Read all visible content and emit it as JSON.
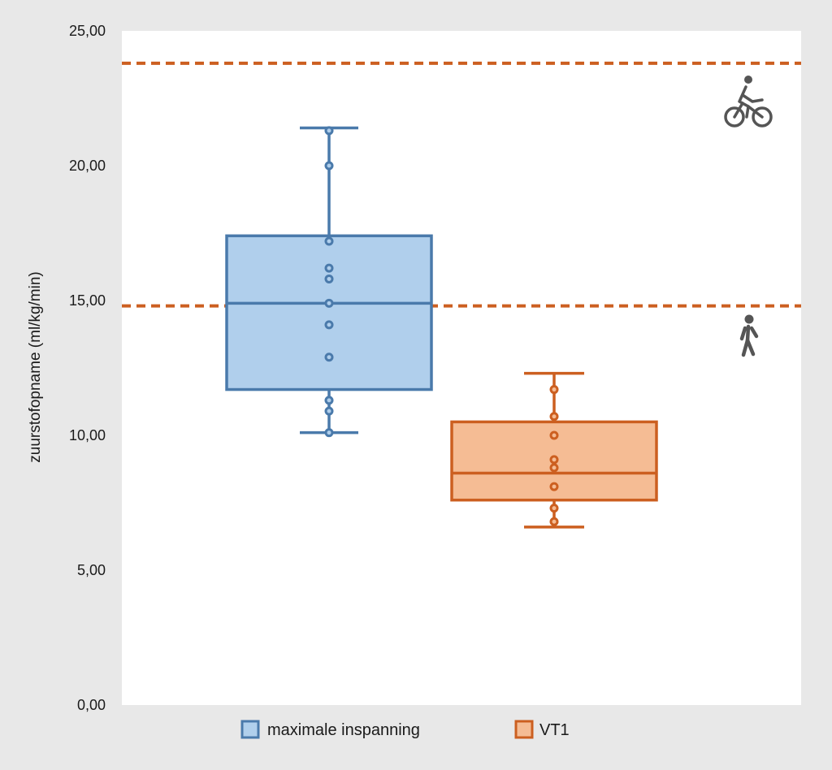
{
  "chart_data": {
    "type": "box",
    "title": "",
    "xlabel": "",
    "ylabel": "zuurstofopname (ml/kg/min)",
    "ylim": [
      0,
      25
    ],
    "yticks": [
      "0,00",
      "5,00",
      "10,00",
      "15,00",
      "20,00",
      "25,00"
    ],
    "grid": false,
    "legend_position": "bottom",
    "series": [
      {
        "name": "maximale inspanning",
        "stroke": "#4a7aab",
        "fill": "#b0cfec",
        "whisker_low": 10.1,
        "q1": 11.7,
        "median": 14.9,
        "q3": 17.4,
        "whisker_high": 21.4,
        "points": [
          21.3,
          20.0,
          17.2,
          16.2,
          15.8,
          14.9,
          14.1,
          12.9,
          11.3,
          10.9,
          10.1
        ]
      },
      {
        "name": "VT1",
        "stroke": "#cc5f20",
        "fill": "#f5bc94",
        "whisker_low": 6.6,
        "q1": 7.6,
        "median": 8.6,
        "q3": 10.5,
        "whisker_high": 12.3,
        "points": [
          11.7,
          10.7,
          10.0,
          9.1,
          8.8,
          8.1,
          7.3,
          6.8
        ]
      }
    ],
    "reference_lines": [
      {
        "value": 23.8,
        "color": "#cc5f20",
        "icon": "cyclist-icon"
      },
      {
        "value": 14.8,
        "color": "#cc5f20",
        "icon": "walker-icon"
      }
    ]
  }
}
